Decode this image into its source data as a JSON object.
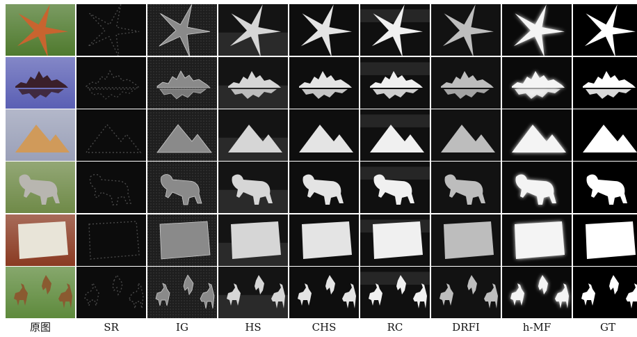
{
  "columns": [
    "原图",
    "SR",
    "IG",
    "HS",
    "CHS",
    "RC",
    "DRFI",
    "h-MF",
    "GT"
  ],
  "rows": [
    {
      "subject": "starfish",
      "icon": "starfish-shape",
      "photo_bg": "#4f7a2e",
      "photo_fg": "#c8642f"
    },
    {
      "subject": "island-reflection",
      "icon": "island-silhouette-shape",
      "photo_bg": "#5a5fb4",
      "photo_fg": "#3a1f2a"
    },
    {
      "subject": "pyramids",
      "icon": "pyramid-shape",
      "photo_bg": "#9aa0b8",
      "photo_fg": "#d09a5a"
    },
    {
      "subject": "dog-on-grass",
      "icon": "dog-shape",
      "photo_bg": "#6f8a48",
      "photo_fg": "#b8b6b0"
    },
    {
      "subject": "warning-sign",
      "icon": "sign-board-shape",
      "photo_bg": "#8a3a22",
      "photo_fg": "#e8e4d8"
    },
    {
      "subject": "deer-in-field",
      "icon": "deer-shape",
      "photo_bg": "#5e8a3c",
      "photo_fg": "#8a5a30"
    }
  ]
}
